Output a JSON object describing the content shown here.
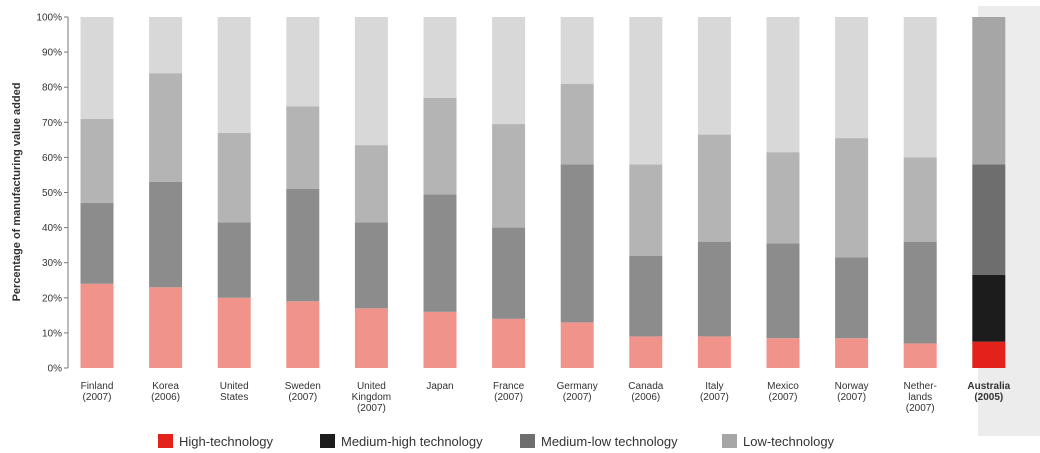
{
  "chart_data": {
    "type": "bar",
    "stacked": true,
    "ylabel": "Percentage of manufacturing value added",
    "ylim": [
      0,
      100
    ],
    "yticks": [
      "0%",
      "10%",
      "20%",
      "30%",
      "40%",
      "50%",
      "60%",
      "70%",
      "80%",
      "90%",
      "100%"
    ],
    "categories": [
      [
        "Finland",
        "(2007)"
      ],
      [
        "Korea",
        "(2006)"
      ],
      [
        "United",
        "States"
      ],
      [
        "Sweden",
        "(2007)"
      ],
      [
        "United",
        "Kingdom",
        "(2007)"
      ],
      [
        "Japan"
      ],
      [
        "France",
        "(2007)"
      ],
      [
        "Germany",
        "(2007)"
      ],
      [
        "Canada",
        "(2006)"
      ],
      [
        "Italy",
        "(2007)"
      ],
      [
        "Mexico",
        "(2007)"
      ],
      [
        "Norway",
        "(2007)"
      ],
      [
        "Nether-",
        "lands",
        "(2007)"
      ],
      [
        "Australia",
        "(2005)"
      ]
    ],
    "highlight_index": 13,
    "series": [
      {
        "name": "High-technology",
        "values": [
          24,
          23,
          20,
          19,
          17,
          16,
          14,
          13,
          9,
          9,
          8.5,
          8.5,
          7,
          7.5
        ]
      },
      {
        "name": "Medium-high technology",
        "values": [
          0,
          0,
          0,
          0,
          0,
          0,
          0,
          0,
          0,
          0,
          0,
          0,
          0,
          19
        ]
      },
      {
        "name": "Medium-low technology",
        "values": [
          23,
          30,
          21.5,
          32,
          24.5,
          33.5,
          26,
          45,
          23,
          27,
          27,
          23,
          29,
          31.5
        ]
      },
      {
        "name": "Low-technology",
        "values": [
          24,
          31,
          25.5,
          23.5,
          22,
          27.5,
          29.5,
          23,
          26,
          30.5,
          26,
          34,
          24,
          42
        ]
      }
    ],
    "colors": {
      "standard": [
        "#f0938a",
        "#8c8c8c",
        "#8c8c8c",
        "#b4b4b4"
      ],
      "highlight": [
        "#e3231b",
        "#1c1c1c",
        "#6e6e6e",
        "#a6a6a6"
      ],
      "remainder": "#d8d8d8",
      "highlight_background": "#ececec"
    },
    "legend": {
      "placement": "bottom",
      "items": [
        {
          "label": "High-technology",
          "color": "#e3231b"
        },
        {
          "label": "Medium-high technology",
          "color": "#1c1c1c"
        },
        {
          "label": "Medium-low technology",
          "color": "#6e6e6e"
        },
        {
          "label": "Low-technology",
          "color": "#a6a6a6"
        }
      ]
    }
  }
}
